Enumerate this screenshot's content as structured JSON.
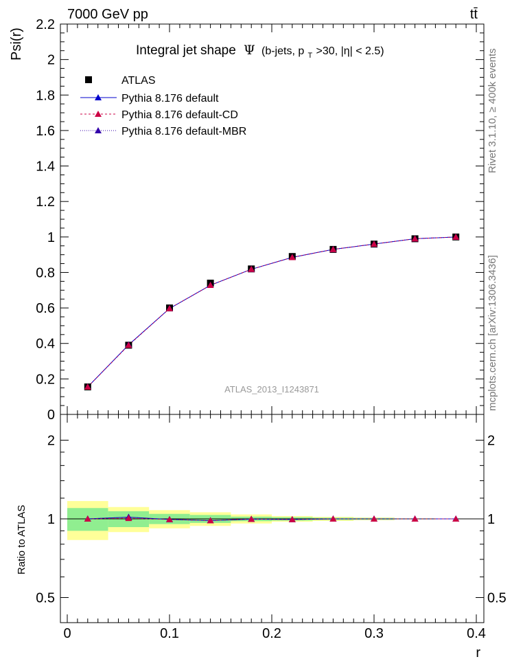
{
  "header": {
    "energy_label": "7000 GeV pp",
    "process_label": "tt̄"
  },
  "side_texts": {
    "rivet": "Rivet 3.1.10, ≥ 400k events",
    "mcplots": "mcplots.cern.ch [arXiv:1306.3436]"
  },
  "colors": {
    "data": "#000000",
    "default": "#0000cc",
    "cd": "#cc0044",
    "mbr": "#3300aa",
    "band_inner": "#90ee90",
    "band_outer": "#ffff99"
  },
  "chart_data": [
    {
      "type": "line",
      "title_main": "Integral jet shape",
      "title_symbol": "Ψ",
      "title_detail": "(b-jets, p",
      "title_detail_sub": "T",
      "title_detail_rest": ">30, |η| < 2.5)",
      "ylabel": "Psi(r)",
      "watermark": "ATLAS_2013_I1243871",
      "xlim": [
        0,
        0.4
      ],
      "ylim": [
        0,
        2.2
      ],
      "yticks": [
        "0",
        "0.2",
        "0.4",
        "0.6",
        "0.8",
        "1",
        "1.2",
        "1.4",
        "1.6",
        "1.8",
        "2",
        "2.2"
      ],
      "x": [
        0.02,
        0.06,
        0.1,
        0.14,
        0.18,
        0.22,
        0.26,
        0.3,
        0.34,
        0.38
      ],
      "series": [
        {
          "name": "ATLAS",
          "key": "data",
          "values": [
            0.155,
            0.39,
            0.6,
            0.74,
            0.82,
            0.89,
            0.93,
            0.96,
            0.99,
            1.0
          ]
        },
        {
          "name": "Pythia 8.176 default",
          "key": "default",
          "values": [
            0.155,
            0.392,
            0.597,
            0.728,
            0.818,
            0.885,
            0.93,
            0.96,
            0.99,
            1.0
          ]
        },
        {
          "name": "Pythia 8.176 default-CD",
          "key": "cd",
          "values": [
            0.155,
            0.39,
            0.597,
            0.728,
            0.818,
            0.885,
            0.93,
            0.96,
            0.99,
            1.0
          ]
        },
        {
          "name": "Pythia 8.176 default-MBR",
          "key": "mbr",
          "values": [
            0.155,
            0.392,
            0.597,
            0.728,
            0.818,
            0.885,
            0.93,
            0.96,
            0.99,
            1.0
          ]
        }
      ],
      "legend_position": "top-left"
    },
    {
      "type": "line",
      "ylabel": "Ratio to ATLAS",
      "xlabel": "r",
      "xlim": [
        0,
        0.4
      ],
      "ylim": [
        0.33,
        2.4
      ],
      "xticks": [
        "0",
        "0.1",
        "0.2",
        "0.3",
        "0.4"
      ],
      "yticks": [
        "0.5",
        "1",
        "2"
      ],
      "x": [
        0.02,
        0.06,
        0.1,
        0.14,
        0.18,
        0.22,
        0.26,
        0.3,
        0.34,
        0.38
      ],
      "bin_edges": [
        0.0,
        0.04,
        0.08,
        0.12,
        0.16,
        0.2,
        0.24,
        0.28,
        0.32,
        0.36,
        0.4
      ],
      "band_inner_half": [
        0.1,
        0.07,
        0.045,
        0.035,
        0.02,
        0.015,
        0.01,
        0.008,
        0.004,
        0.002
      ],
      "band_outer_half": [
        0.17,
        0.11,
        0.08,
        0.06,
        0.04,
        0.025,
        0.018,
        0.012,
        0.006,
        0.003
      ],
      "series": [
        {
          "name": "Pythia 8.176 default",
          "key": "default",
          "values": [
            1.0,
            1.015,
            0.995,
            0.985,
            0.998,
            0.995,
            1.0,
            1.0,
            1.0,
            1.0
          ]
        },
        {
          "name": "Pythia 8.176 default-CD",
          "key": "cd",
          "values": [
            1.0,
            1.005,
            0.995,
            0.985,
            0.998,
            0.995,
            1.0,
            1.0,
            1.0,
            1.0
          ]
        },
        {
          "name": "Pythia 8.176 default-MBR",
          "key": "mbr",
          "values": [
            1.0,
            1.015,
            0.995,
            0.985,
            0.998,
            0.995,
            1.0,
            1.0,
            1.0,
            1.0
          ]
        }
      ]
    }
  ]
}
